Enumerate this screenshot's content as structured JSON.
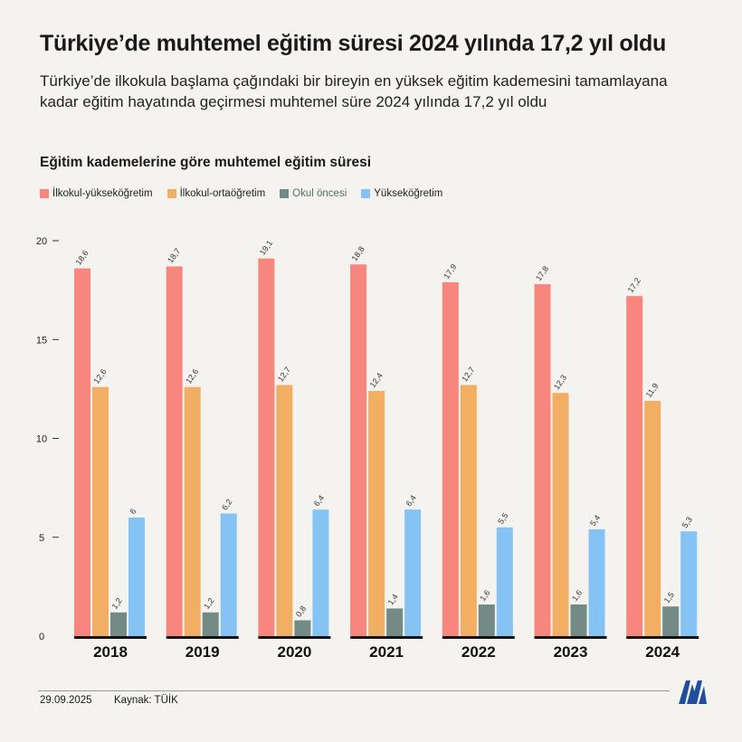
{
  "header": {
    "title": "Türkiye’de muhtemel eğitim süresi 2024 yılında 17,2 yıl oldu",
    "subtitle": "Türkiye’de ilkokula başlama çağındaki bir bireyin en yüksek eğitim kademesini tamamlayana kadar eğitim hayatında geçirmesi muhtemel süre 2024 yılında 17,2 yıl oldu"
  },
  "chart_data": {
    "type": "bar",
    "title": "Eğitim kademelerine göre muhtemel eğitim süresi",
    "categories": [
      "2018",
      "2019",
      "2020",
      "2021",
      "2022",
      "2023",
      "2024"
    ],
    "series": [
      {
        "name": "İlkokul-yükseköğretim",
        "color": "#f7877e",
        "values": [
          18.6,
          18.7,
          19.1,
          18.8,
          17.9,
          17.8,
          17.2
        ]
      },
      {
        "name": "İlkokul-ortaöğretim",
        "color": "#f2ae63",
        "values": [
          12.6,
          12.6,
          12.7,
          12.4,
          12.7,
          12.3,
          11.9
        ]
      },
      {
        "name": "Okul öncesi",
        "color": "#738a87",
        "values": [
          1.2,
          1.2,
          0.8,
          1.4,
          1.6,
          1.6,
          1.5
        ]
      },
      {
        "name": "Yükseköğretim",
        "color": "#85c3f5",
        "values": [
          6,
          6.2,
          6.4,
          6.4,
          5.5,
          5.4,
          5.3
        ]
      }
    ],
    "ylim": [
      0,
      20
    ],
    "yticks": [
      0,
      5,
      10,
      15,
      20
    ],
    "grid": false,
    "legend": "top-left",
    "xlabel": "",
    "ylabel": ""
  },
  "footer": {
    "date": "29.09.2025",
    "source": "Kaynak: TÜİK",
    "logo_text": "AA"
  }
}
